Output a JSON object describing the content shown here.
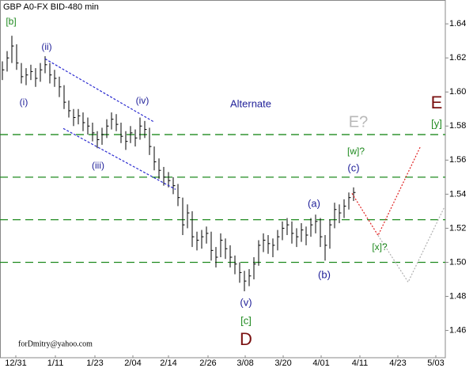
{
  "chart_data": {
    "type": "ohlc",
    "title": "GBP A0-FX BID-480 min",
    "color": "#000000",
    "xlim": [
      -0.5,
      93.33
    ],
    "xticks": [
      {
        "value": 2.83,
        "label": "12/31"
      },
      {
        "value": 11.17,
        "label": "1/11"
      },
      {
        "value": 19.5,
        "label": "1/23"
      },
      {
        "value": 27.5,
        "label": "2/04"
      },
      {
        "value": 35,
        "label": "2/14"
      },
      {
        "value": 43.33,
        "label": "2/26"
      },
      {
        "value": 51.17,
        "label": "3/08"
      },
      {
        "value": 59.17,
        "label": "3/20"
      },
      {
        "value": 67.17,
        "label": "4/01"
      },
      {
        "value": 75.33,
        "label": "4/11"
      },
      {
        "value": 83.33,
        "label": "4/23"
      },
      {
        "value": 91.33,
        "label": "5/03"
      }
    ],
    "ylim": [
      1.444,
      1.654
    ],
    "yticks": [
      1.46,
      1.48,
      {
        "value": 1.5,
        "label": "1.50"
      },
      1.52,
      1.54,
      1.56,
      1.58,
      {
        "value": 1.6,
        "label": "1.60"
      },
      1.62,
      1.64
    ],
    "high": [
      1.618,
      1.624,
      1.633,
      1.628,
      1.617,
      1.614,
      1.616,
      1.614,
      1.617,
      1.621,
      1.617,
      1.613,
      1.609,
      1.604,
      1.595,
      1.59,
      1.59,
      1.588,
      1.585,
      1.582,
      1.577,
      1.579,
      1.584,
      1.588,
      1.587,
      1.582,
      1.577,
      1.58,
      1.578,
      1.585,
      1.583,
      1.579,
      1.568,
      1.561,
      1.556,
      1.553,
      1.55,
      1.546,
      1.538,
      1.534,
      1.53,
      1.518,
      1.519,
      1.521,
      1.518,
      1.509,
      1.517,
      1.514,
      1.51,
      1.504,
      1.5,
      1.495,
      1.496,
      1.503,
      1.513,
      1.517,
      1.516,
      1.514,
      1.519,
      1.524,
      1.526,
      1.524,
      1.52,
      1.523,
      1.521,
      1.526,
      1.528,
      1.526,
      1.516,
      1.525,
      1.535,
      1.534,
      1.537,
      1.541,
      1.544
    ],
    "low": [
      1.607,
      1.612,
      1.617,
      1.613,
      1.605,
      1.604,
      1.607,
      1.603,
      1.606,
      1.611,
      1.605,
      1.603,
      1.597,
      1.59,
      1.585,
      1.58,
      1.581,
      1.577,
      1.575,
      1.571,
      1.567,
      1.569,
      1.573,
      1.578,
      1.577,
      1.57,
      1.566,
      1.57,
      1.568,
      1.572,
      1.573,
      1.563,
      1.554,
      1.549,
      1.545,
      1.544,
      1.54,
      1.533,
      1.516,
      1.52,
      1.509,
      1.507,
      1.508,
      1.511,
      1.501,
      1.497,
      1.503,
      1.502,
      1.497,
      1.493,
      1.488,
      1.483,
      1.486,
      1.49,
      1.498,
      1.506,
      1.505,
      1.503,
      1.507,
      1.513,
      1.516,
      1.511,
      1.509,
      1.512,
      1.51,
      1.515,
      1.517,
      1.509,
      1.501,
      1.508,
      1.52,
      1.523,
      1.526,
      1.531,
      1.536
    ],
    "close": [
      1.613,
      1.62,
      1.627,
      1.617,
      1.609,
      1.61,
      1.612,
      1.608,
      1.613,
      1.616,
      1.61,
      1.608,
      1.603,
      1.594,
      1.589,
      1.585,
      1.586,
      1.582,
      1.58,
      1.576,
      1.572,
      1.575,
      1.58,
      1.584,
      1.581,
      1.574,
      1.571,
      1.576,
      1.573,
      1.58,
      1.578,
      1.568,
      1.559,
      1.554,
      1.55,
      1.548,
      1.545,
      1.538,
      1.522,
      1.529,
      1.515,
      1.513,
      1.515,
      1.517,
      1.507,
      1.503,
      1.513,
      1.508,
      1.503,
      1.499,
      1.494,
      1.489,
      1.492,
      1.499,
      1.51,
      1.513,
      1.511,
      1.51,
      1.515,
      1.52,
      1.522,
      1.517,
      1.515,
      1.519,
      1.516,
      1.522,
      1.524,
      1.515,
      1.51,
      1.522,
      1.531,
      1.529,
      1.533,
      1.538,
      1.541
    ],
    "levels": {
      "color": "#1f8a1f",
      "values": [
        1.575,
        1.55,
        1.525,
        1.5
      ]
    },
    "lines": [
      {
        "color": "#2a2ad0",
        "x": [
          9,
          32
        ],
        "y": [
          1.6195,
          1.5823
        ]
      },
      {
        "color": "#2a2ad0",
        "x": [
          12.83,
          36.5
        ],
        "y": [
          1.5786,
          1.5428
        ]
      },
      {
        "color": "#e02020",
        "x": [
          73.67,
          79.17,
          88.17
        ],
        "y": [
          1.5405,
          1.5158,
          1.5684
        ]
      },
      {
        "color": "#b0b0b0",
        "x": [
          79.17,
          85.5,
          93.17
        ],
        "y": [
          1.5158,
          1.4884,
          1.5326
        ]
      }
    ],
    "annotations": [
      {
        "text": "[b]",
        "color": "#1f8a1f"
      },
      {
        "text": "(ii)",
        "color": "#22229a"
      },
      {
        "text": "(i)",
        "color": "#22229a"
      },
      {
        "text": "(iv)",
        "color": "#22229a"
      },
      {
        "text": "(iii)",
        "color": "#22229a"
      },
      {
        "text": "Alternate",
        "color": "#22229a"
      },
      {
        "text": "E?",
        "color": "#b8b8b8"
      },
      {
        "text": "E",
        "color": "#7a1010"
      },
      {
        "text": "[y]",
        "color": "#1f8a1f"
      },
      {
        "text": "[w]?",
        "color": "#1f8a1f"
      },
      {
        "text": "(c)",
        "color": "#22229a"
      },
      {
        "text": "(a)",
        "color": "#22229a"
      },
      {
        "text": "(b)",
        "color": "#22229a"
      },
      {
        "text": "[x]?",
        "color": "#1f8a1f"
      },
      {
        "text": "(v)",
        "color": "#22229a"
      },
      {
        "text": "[c]",
        "color": "#1f8a1f"
      },
      {
        "text": "D",
        "color": "#7a1010"
      },
      {
        "text": "forDmitry@yahoo.com",
        "color": "#000000"
      }
    ]
  }
}
